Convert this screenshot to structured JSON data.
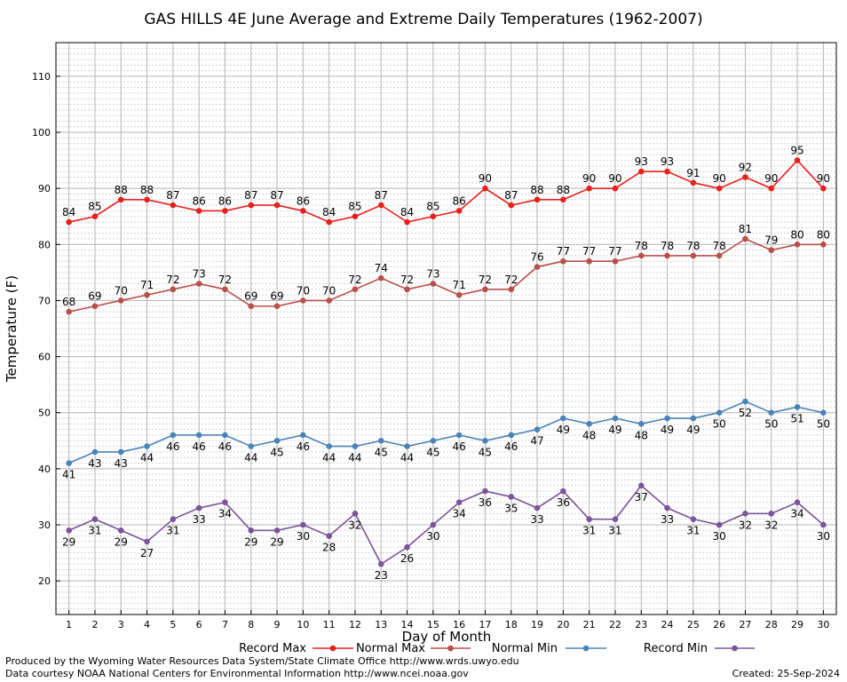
{
  "chart_data": {
    "type": "line",
    "title": "GAS HILLS 4E June Average and Extreme Daily Temperatures (1962-2007)",
    "xlabel": "Day of Month",
    "ylabel": "Temperature (F)",
    "x": [
      1,
      2,
      3,
      4,
      5,
      6,
      7,
      8,
      9,
      10,
      11,
      12,
      13,
      14,
      15,
      16,
      17,
      18,
      19,
      20,
      21,
      22,
      23,
      24,
      25,
      26,
      27,
      28,
      29,
      30
    ],
    "xlim": [
      0.5,
      30.5
    ],
    "ylim": [
      14,
      116
    ],
    "yticks": [
      20,
      30,
      40,
      50,
      60,
      70,
      80,
      90,
      100,
      110
    ],
    "grid": true,
    "legend_position": "bottom",
    "series": [
      {
        "name": "Record Max",
        "color": "#e8201c",
        "label_position": "above",
        "values": [
          84,
          85,
          88,
          88,
          87,
          86,
          86,
          87,
          87,
          86,
          84,
          85,
          87,
          84,
          85,
          86,
          90,
          87,
          88,
          88,
          90,
          90,
          93,
          93,
          91,
          90,
          92,
          90,
          95,
          90
        ]
      },
      {
        "name": "Normal Max",
        "color": "#b84f4a",
        "label_position": "above",
        "values": [
          68,
          69,
          70,
          71,
          72,
          73,
          72,
          69,
          69,
          70,
          70,
          72,
          74,
          72,
          73,
          71,
          72,
          72,
          76,
          77,
          77,
          77,
          78,
          78,
          78,
          78,
          81,
          79,
          80,
          80
        ]
      },
      {
        "name": "Normal Min",
        "color": "#4a83b8",
        "label_position": "below",
        "values": [
          41,
          43,
          43,
          44,
          46,
          46,
          46,
          44,
          45,
          46,
          44,
          44,
          45,
          44,
          45,
          46,
          45,
          46,
          47,
          49,
          48,
          49,
          48,
          49,
          49,
          50,
          52,
          50,
          51,
          50
        ]
      },
      {
        "name": "Record Min",
        "color": "#7b559b",
        "label_position": "below",
        "values": [
          29,
          31,
          29,
          27,
          31,
          33,
          34,
          29,
          29,
          30,
          28,
          32,
          23,
          26,
          30,
          34,
          36,
          35,
          33,
          36,
          31,
          31,
          37,
          33,
          31,
          30,
          32,
          32,
          34,
          30
        ]
      }
    ]
  },
  "footer": {
    "producer": "Produced by the Wyoming Water Resources Data System/State Climate Office http://www.wrds.uwyo.edu",
    "courtesy": "Data courtesy NOAA National Centers for Environmental Information http://www.ncei.noaa.gov",
    "created": "Created:  25-Sep-2024"
  }
}
